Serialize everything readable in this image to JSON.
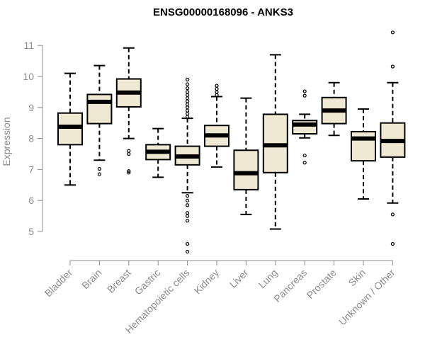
{
  "chart_data": {
    "type": "box",
    "title": "ENSG00000168096 - ANKS3",
    "xlabel": "",
    "ylabel": "Expression",
    "ylim": [
      4.0,
      11.3
    ],
    "yticks": [
      5,
      6,
      7,
      8,
      9,
      10,
      11
    ],
    "box_fill": "#efe8d2",
    "box_stroke": "#000000",
    "grid": false,
    "categories": [
      "Bladder",
      "Brain",
      "Breast",
      "Gastric",
      "Hematopoietic cells",
      "Kidney",
      "Liver",
      "Lung",
      "Pancreas",
      "Prostate",
      "Skin",
      "Unknown / Other"
    ],
    "series": [
      {
        "whisker_low": 6.5,
        "q1": 7.8,
        "median": 8.38,
        "q3": 8.82,
        "whisker_high": 10.1,
        "outliers": []
      },
      {
        "whisker_low": 7.3,
        "q1": 8.48,
        "median": 9.18,
        "q3": 9.42,
        "whisker_high": 10.35,
        "outliers": [
          7.02,
          6.85
        ]
      },
      {
        "whisker_low": 8.0,
        "q1": 9.02,
        "median": 9.48,
        "q3": 9.92,
        "whisker_high": 10.92,
        "outliers": [
          7.6,
          7.5,
          6.95,
          6.9
        ]
      },
      {
        "whisker_low": 6.75,
        "q1": 7.32,
        "median": 7.57,
        "q3": 7.8,
        "whisker_high": 8.32,
        "outliers": []
      },
      {
        "whisker_low": 6.25,
        "q1": 7.15,
        "median": 7.42,
        "q3": 7.75,
        "whisker_high": 8.65,
        "outliers": [
          9.9,
          9.75,
          9.62,
          9.5,
          9.4,
          9.3,
          9.2,
          9.1,
          9.0,
          8.9,
          8.8,
          8.7,
          6.15,
          6.0,
          5.85,
          5.6,
          5.5,
          5.35,
          4.6,
          4.35
        ]
      },
      {
        "whisker_low": 7.08,
        "q1": 7.75,
        "median": 8.1,
        "q3": 8.42,
        "whisker_high": 9.35,
        "outliers": [
          9.7,
          9.6,
          9.5,
          9.4
        ]
      },
      {
        "whisker_low": 5.55,
        "q1": 6.35,
        "median": 6.88,
        "q3": 7.62,
        "whisker_high": 9.3,
        "outliers": []
      },
      {
        "whisker_low": 5.08,
        "q1": 6.9,
        "median": 7.78,
        "q3": 8.78,
        "whisker_high": 10.7,
        "outliers": []
      },
      {
        "whisker_low": 8.02,
        "q1": 8.15,
        "median": 8.45,
        "q3": 8.58,
        "whisker_high": 8.78,
        "outliers": [
          9.52,
          9.38,
          7.45,
          7.22
        ]
      },
      {
        "whisker_low": 8.1,
        "q1": 8.48,
        "median": 8.9,
        "q3": 9.32,
        "whisker_high": 9.8,
        "outliers": []
      },
      {
        "whisker_low": 6.05,
        "q1": 7.28,
        "median": 8.0,
        "q3": 8.22,
        "whisker_high": 8.95,
        "outliers": []
      },
      {
        "whisker_low": 5.92,
        "q1": 7.4,
        "median": 7.92,
        "q3": 8.5,
        "whisker_high": 9.8,
        "outliers": [
          11.42,
          10.32,
          5.55,
          4.6
        ]
      }
    ]
  }
}
